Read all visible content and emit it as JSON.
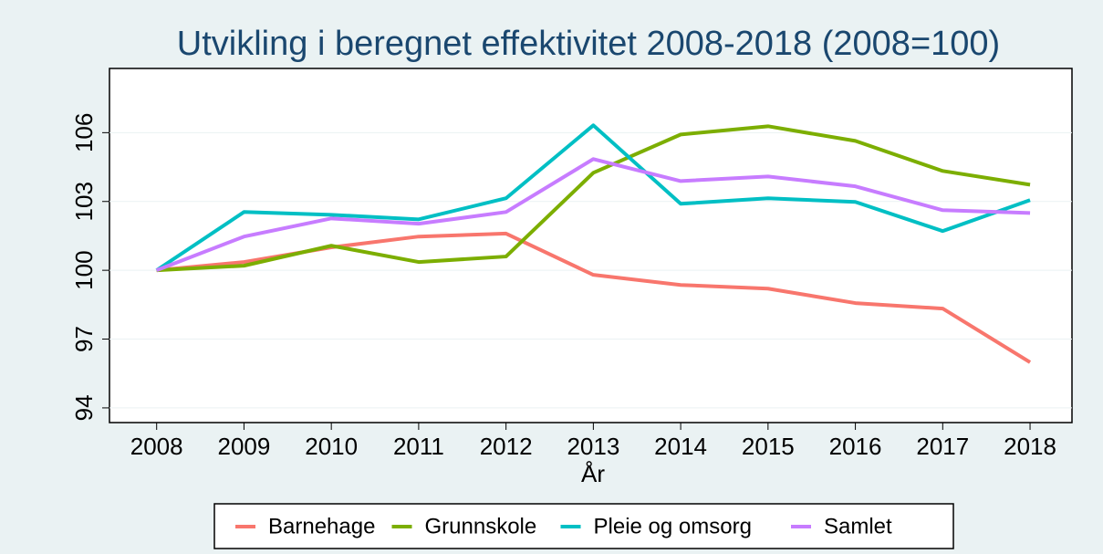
{
  "chart_data": {
    "type": "line",
    "title": "Utvikling i beregnet effektivitet 2008-2018 (2008=100)",
    "x_label": "År",
    "x": [
      2008,
      2009,
      2010,
      2011,
      2012,
      2013,
      2014,
      2015,
      2016,
      2017,
      2018
    ],
    "series": [
      {
        "name": "Barnehage",
        "color": "#f8766d",
        "values": [
          100,
          100.36,
          101.0,
          101.47,
          101.6,
          99.8,
          99.36,
          99.2,
          98.57,
          98.33,
          95.99
        ]
      },
      {
        "name": "Grunnskole",
        "color": "#7cae00",
        "values": [
          100,
          100.2,
          101.07,
          100.36,
          100.6,
          104.25,
          105.92,
          106.28,
          105.64,
          104.33,
          103.73
        ]
      },
      {
        "name": "Pleie og omsorg",
        "color": "#00bfc4",
        "values": [
          100,
          102.54,
          102.42,
          102.22,
          103.14,
          106.32,
          102.9,
          103.14,
          102.98,
          101.71,
          103.06
        ]
      },
      {
        "name": "Samlet",
        "color": "#c77cff",
        "values": [
          100,
          101.47,
          102.26,
          102.03,
          102.54,
          104.85,
          103.89,
          104.09,
          103.66,
          102.62,
          102.5
        ]
      }
    ],
    "xlim": [
      2007.46,
      2018.48
    ],
    "xticks": [
      2008,
      2009,
      2010,
      2011,
      2012,
      2013,
      2014,
      2015,
      2016,
      2017,
      2018
    ],
    "ylim": [
      93.36,
      108.8
    ],
    "yticks": [
      94,
      97,
      100,
      103,
      106
    ],
    "grid": true,
    "legend": "bottom"
  }
}
